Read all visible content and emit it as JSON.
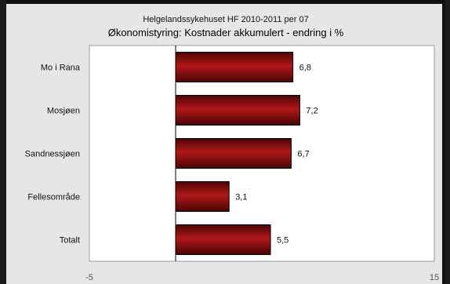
{
  "chart_data": {
    "type": "bar",
    "orientation": "horizontal",
    "subtitle": "Helgelandssykehuset HF 2010-2011 per 07",
    "title": "Økonomistyring: Kostnader akkumulert - endring i %",
    "categories": [
      "Mo i Rana",
      "Mosjøen",
      "Sandnessjøen",
      "Fellesområde",
      "Totalt"
    ],
    "values": [
      6.8,
      7.2,
      6.7,
      3.1,
      5.5
    ],
    "value_labels": [
      "6,8",
      "7,2",
      "6,7",
      "3,1",
      "5,5"
    ],
    "xlim": [
      -5,
      15
    ],
    "x_ticks": [
      "-5",
      "15"
    ],
    "grid": false,
    "colors": {
      "bar": "#7a0c0c",
      "bar_highlight": "#b01818",
      "plot_bg": "#ffffff",
      "frame_bg": "#e6e6e6"
    }
  }
}
